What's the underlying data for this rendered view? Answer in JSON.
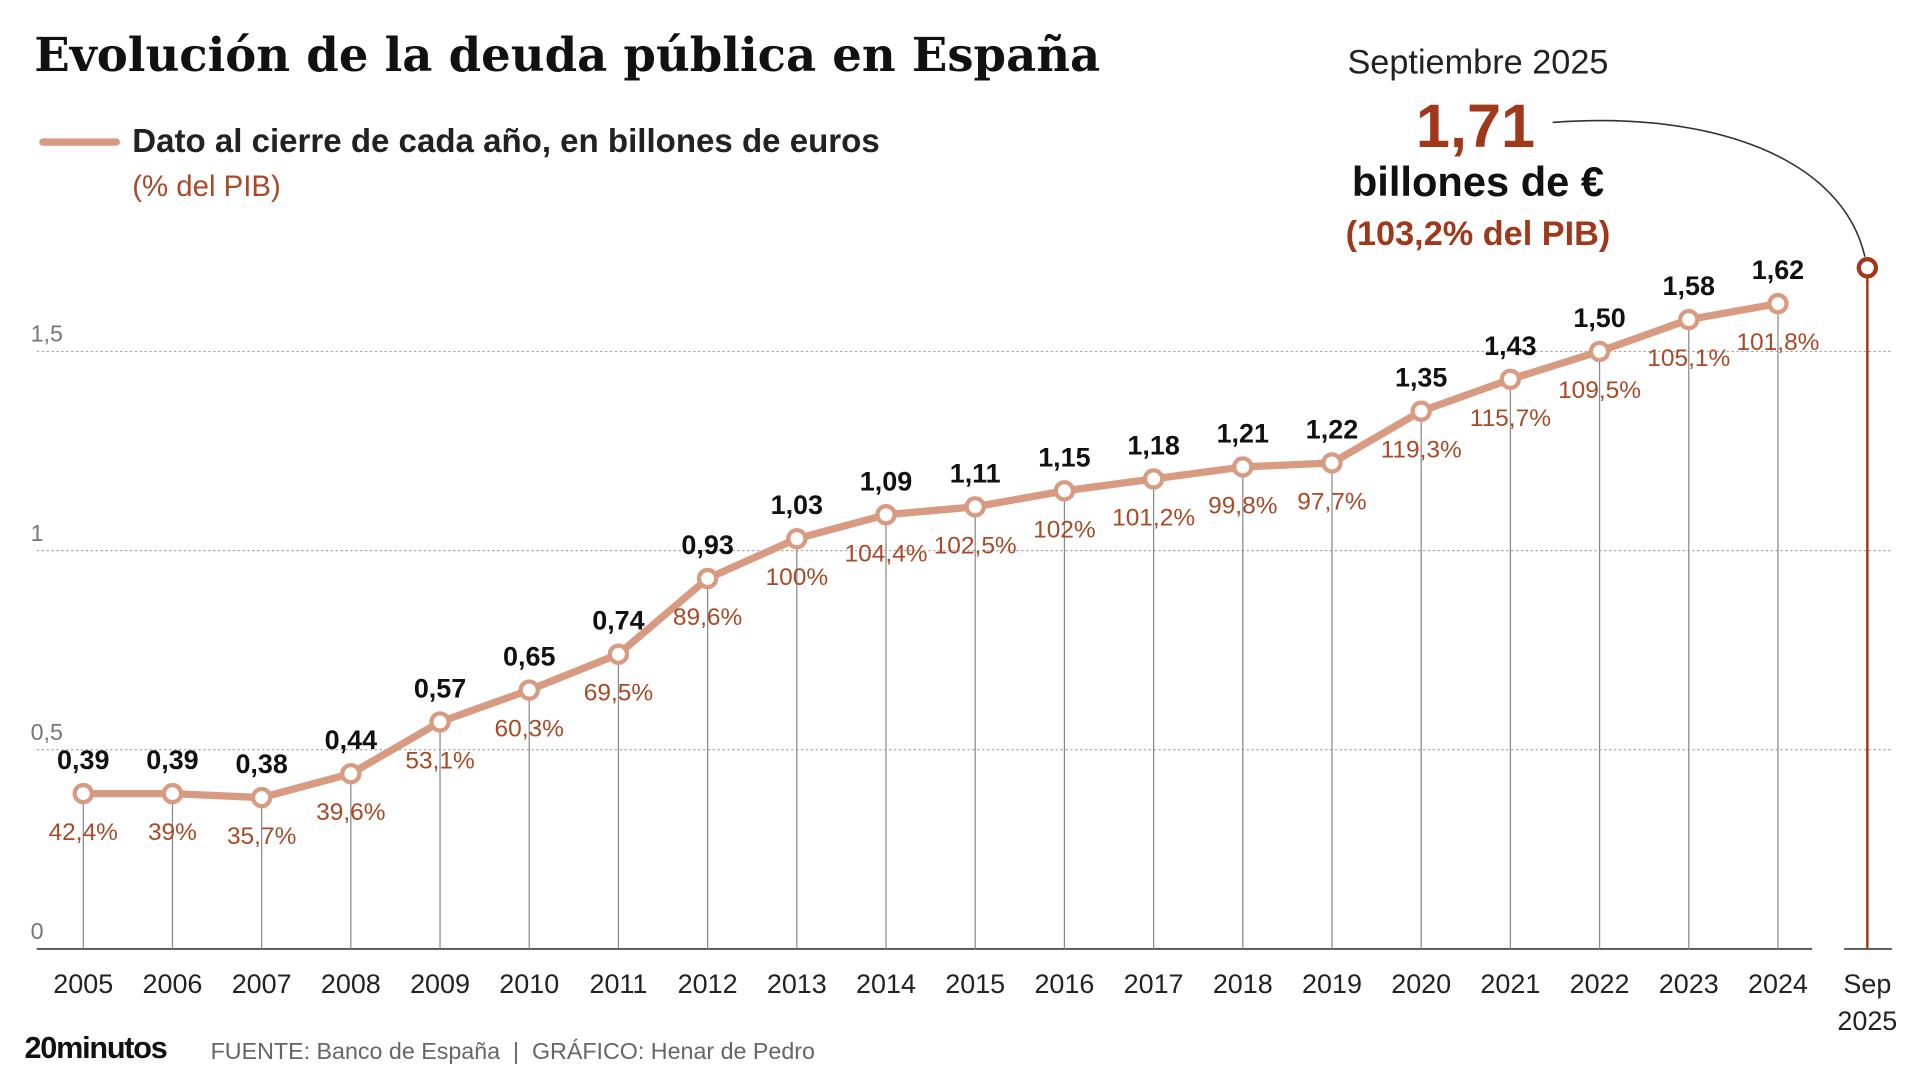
{
  "chart_data": {
    "type": "line",
    "title": "Evolución de la deuda pública en España",
    "categories": [
      "2005",
      "2006",
      "2007",
      "2008",
      "2009",
      "2010",
      "2011",
      "2012",
      "2013",
      "2014",
      "2015",
      "2016",
      "2017",
      "2018",
      "2019",
      "2020",
      "2021",
      "2022",
      "2023",
      "2024"
    ],
    "series": [
      {
        "name": "Dato al cierre de cada año, en billones de euros",
        "color": "#d99a82",
        "values": [
          0.39,
          0.39,
          0.38,
          0.44,
          0.57,
          0.65,
          0.74,
          0.93,
          1.03,
          1.09,
          1.11,
          1.15,
          1.18,
          1.21,
          1.22,
          1.35,
          1.43,
          1.5,
          1.58,
          1.62
        ],
        "value_labels": [
          "0,39",
          "0,39",
          "0,38",
          "0,44",
          "0,57",
          "0,65",
          "0,74",
          "0,93",
          "1,03",
          "1,09",
          "1,11",
          "1,15",
          "1,18",
          "1,21",
          "1,22",
          "1,35",
          "1,43",
          "1,50",
          "1,58",
          "1,62"
        ]
      }
    ],
    "pib_percent": {
      "name": "(% del PIB)",
      "color": "#a84a28",
      "values": [
        42.4,
        39,
        35.7,
        39.6,
        53.1,
        60.3,
        69.5,
        89.6,
        100,
        104.4,
        102.5,
        102,
        101.2,
        99.8,
        97.7,
        119.3,
        115.7,
        109.5,
        105.1,
        101.8
      ],
      "value_labels": [
        "42,4%",
        "39%",
        "35,7%",
        "39,6%",
        "53,1%",
        "60,3%",
        "69,5%",
        "89,6%",
        "100%",
        "104,4%",
        "102,5%",
        "102%",
        "101,2%",
        "99,8%",
        "97,7%",
        "119,3%",
        "115,7%",
        "109,5%",
        "105,1%",
        "101,8%"
      ]
    },
    "highlight": {
      "label": "Septiembre 2025",
      "x_label": [
        "Sep",
        "2025"
      ],
      "value": 1.71,
      "value_label": "1,71",
      "unit": "billones de €",
      "pib_percent": 103.2,
      "pib_label": "(103,2% del PIB)",
      "color": "#a0391c"
    },
    "ylim": [
      0,
      1.5
    ],
    "yticks": [
      0,
      {
        "value": 0.5,
        "label": "0,5"
      },
      1,
      {
        "value": 1.5,
        "label": "1,5"
      }
    ],
    "grid": true,
    "brand": "20minutos",
    "source": "FUENTE: Banco de España  |  GRÁFICO: Henar de Pedro"
  }
}
